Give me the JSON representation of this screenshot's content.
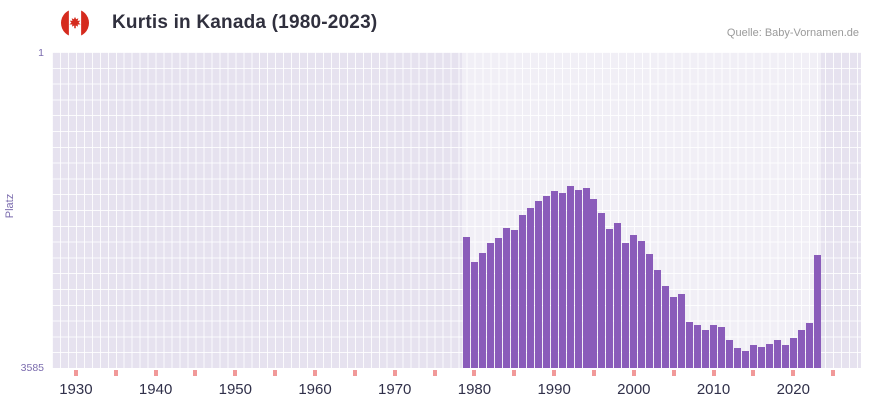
{
  "header": {
    "title": "Kurtis in Kanada (1980-2023)",
    "source": "Quelle: Baby-Vornamen.de"
  },
  "chart_data": {
    "type": "bar",
    "title": "Kurtis in Kanada (1980-2023)",
    "ylabel": "Platz",
    "y_axis": {
      "top_tick": "1",
      "bottom_tick": "3585",
      "min": 1,
      "max": 3585,
      "inverted": true
    },
    "x_axis": {
      "range_min": 1927,
      "range_max": 2028.5,
      "tick_years": [
        1930,
        1940,
        1950,
        1960,
        1970,
        1980,
        1990,
        2000,
        2010,
        2020
      ],
      "minor_tick_step": 5,
      "minor_tick_start": 1930,
      "minor_tick_end": 2025
    },
    "highlight_band": {
      "from": 1978.5,
      "to": 2023.5
    },
    "colors": {
      "bar": "#8a5cba",
      "plot_bg": "#e6e2ef",
      "grid": "#ffffff",
      "band": "rgba(255,255,255,0.45)",
      "axis_tick": "#f19999",
      "axis_text": "#30304a",
      "accent_text": "#7b6cae",
      "flag_red": "#d52b1e"
    },
    "years": [
      1979,
      1980,
      1981,
      1982,
      1983,
      1984,
      1985,
      1986,
      1987,
      1988,
      1989,
      1990,
      1991,
      1992,
      1993,
      1994,
      1995,
      1996,
      1997,
      1998,
      1999,
      2000,
      2001,
      2002,
      2003,
      2004,
      2005,
      2006,
      2007,
      2008,
      2009,
      2010,
      2011,
      2012,
      2013,
      2014,
      2015,
      2016,
      2017,
      2018,
      2019,
      2020,
      2021,
      2022,
      2023
    ],
    "ranks": [
      2100,
      2380,
      2280,
      2170,
      2110,
      2000,
      2020,
      1850,
      1770,
      1690,
      1630,
      1580,
      1600,
      1520,
      1570,
      1540,
      1670,
      1830,
      2010,
      1940,
      2170,
      2080,
      2140,
      2290,
      2470,
      2660,
      2780,
      2750,
      3060,
      3100,
      3150,
      3100,
      3120,
      3270,
      3360,
      3390,
      3320,
      3350,
      3310,
      3270,
      3320,
      3250,
      3150,
      3080,
      2300
    ]
  }
}
